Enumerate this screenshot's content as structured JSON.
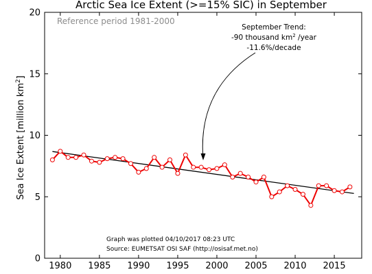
{
  "chart_data": {
    "type": "line",
    "title": "Arctic Sea Ice Extent (>=15% SIC) in September",
    "xlabel": "",
    "ylabel_main": "Sea Ice Extent [million km",
    "ylabel_sup": "2",
    "ylabel_end": "]",
    "xlim": [
      1978,
      2018.5
    ],
    "ylim": [
      0,
      20
    ],
    "xticks": [
      1980,
      1985,
      1990,
      1995,
      2000,
      2005,
      2010,
      2015
    ],
    "yticks": [
      0,
      5,
      10,
      15,
      20
    ],
    "grid": false,
    "series": [
      {
        "x": [
          1979,
          1980,
          1981,
          1982,
          1983,
          1984,
          1985,
          1986,
          1987,
          1988,
          1989,
          1990,
          1991,
          1992,
          1993,
          1994,
          1995,
          1996,
          1997,
          1998,
          1999,
          2000,
          2001,
          2002,
          2003,
          2004,
          2005,
          2006,
          2007,
          2008,
          2009,
          2010,
          2011,
          2012,
          2013,
          2014,
          2015,
          2016,
          2017
        ],
        "values": [
          8.0,
          8.7,
          8.2,
          8.2,
          8.4,
          7.9,
          7.8,
          8.1,
          8.2,
          8.1,
          7.7,
          7.0,
          7.3,
          8.2,
          7.4,
          8.0,
          6.9,
          8.4,
          7.4,
          7.4,
          7.2,
          7.3,
          7.6,
          6.6,
          6.9,
          6.6,
          6.2,
          6.6,
          5.0,
          5.4,
          5.9,
          5.6,
          5.2,
          4.3,
          5.9,
          5.9,
          5.5,
          5.4,
          5.8
        ],
        "color": "#ee0000"
      }
    ],
    "trend": {
      "x": [
        1979,
        2017.5
      ],
      "values": [
        8.68,
        5.27
      ],
      "color": "#000000"
    },
    "annotations": {
      "reference": "Reference period 1981-2000",
      "trend_title": "September Trend:",
      "trend_rate_main": "-90 thousand km",
      "trend_rate_sup": "2",
      "trend_rate_end": " /year",
      "trend_decade": "-11.6%/decade",
      "plotted": "Graph was plotted 04/10/2017 08:23 UTC",
      "source": "Source: EUMETSAT OSI SAF (http://osisaf.met.no)"
    }
  }
}
